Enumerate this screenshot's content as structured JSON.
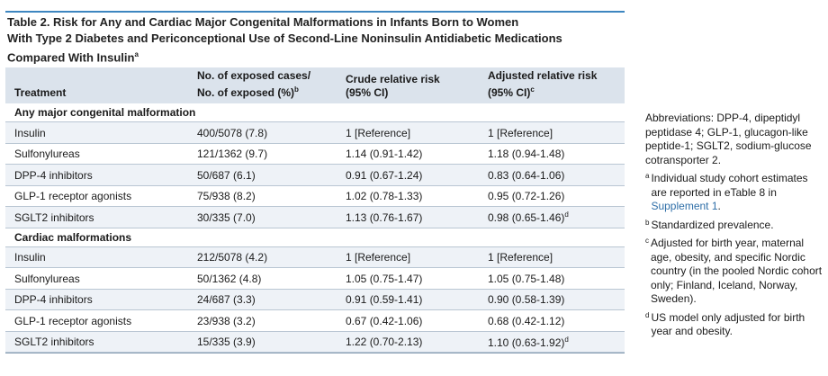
{
  "title": {
    "line1": "Table 2. Risk for Any and Cardiac Major Congenital Malformations in Infants Born to Women",
    "line2": "With Type 2 Diabetes and Periconceptional Use of Second-Line Noninsulin Antidiabetic Medications",
    "line3": "Compared With Insulin",
    "line3_sup": "a"
  },
  "columns": {
    "treatment": "Treatment",
    "exposed_line1": "No. of exposed cases/",
    "exposed_line2": "No. of exposed (%)",
    "exposed_sup": "b",
    "crude_line1": "Crude relative risk",
    "crude_line2": "(95% CI)",
    "adjusted_line1": "Adjusted relative risk",
    "adjusted_line2": "(95% CI)",
    "adjusted_sup": "c"
  },
  "sections": [
    {
      "label": "Any major congenital malformation",
      "rows": [
        {
          "treatment": "Insulin",
          "exposed": "400/5078 (7.8)",
          "crude": "1 [Reference]",
          "adjusted": "1 [Reference]",
          "sup": ""
        },
        {
          "treatment": "Sulfonylureas",
          "exposed": "121/1362 (9.7)",
          "crude": "1.14 (0.91-1.42)",
          "adjusted": "1.18 (0.94-1.48)",
          "sup": ""
        },
        {
          "treatment": "DPP-4 inhibitors",
          "exposed": "50/687 (6.1)",
          "crude": "0.91 (0.67-1.24)",
          "adjusted": "0.83 (0.64-1.06)",
          "sup": ""
        },
        {
          "treatment": "GLP-1 receptor agonists",
          "exposed": "75/938 (8.2)",
          "crude": "1.02 (0.78-1.33)",
          "adjusted": "0.95 (0.72-1.26)",
          "sup": ""
        },
        {
          "treatment": "SGLT2 inhibitors",
          "exposed": "30/335 (7.0)",
          "crude": "1.13 (0.76-1.67)",
          "adjusted": "0.98 (0.65-1.46)",
          "sup": "d"
        }
      ]
    },
    {
      "label": "Cardiac malformations",
      "rows": [
        {
          "treatment": "Insulin",
          "exposed": "212/5078 (4.2)",
          "crude": "1 [Reference]",
          "adjusted": "1 [Reference]",
          "sup": ""
        },
        {
          "treatment": "Sulfonylureas",
          "exposed": "50/1362 (4.8)",
          "crude": "1.05 (0.75-1.47)",
          "adjusted": "1.05 (0.75-1.48)",
          "sup": ""
        },
        {
          "treatment": "DPP-4 inhibitors",
          "exposed": "24/687 (3.3)",
          "crude": "0.91 (0.59-1.41)",
          "adjusted": "0.90 (0.58-1.39)",
          "sup": ""
        },
        {
          "treatment": "GLP-1 receptor agonists",
          "exposed": "23/938 (3.2)",
          "crude": "0.67 (0.42-1.06)",
          "adjusted": "0.68 (0.42-1.12)",
          "sup": ""
        },
        {
          "treatment": "SGLT2 inhibitors",
          "exposed": "15/335 (3.9)",
          "crude": "1.22 (0.70-2.13)",
          "adjusted": "1.10 (0.63-1.92)",
          "sup": "d"
        }
      ]
    }
  ],
  "notes": {
    "abbreviations": "Abbreviations: DPP-4, dipeptidyl peptidase 4; GLP-1, glucagon-like peptide-1; SGLT2, sodium-glucose cotransporter 2.",
    "footnotes": [
      {
        "mark": "a",
        "text": "Individual study cohort estimates are reported in eTable 8 in ",
        "link": "Supplement 1",
        "after": "."
      },
      {
        "mark": "b",
        "text": "Standardized prevalence.",
        "link": "",
        "after": ""
      },
      {
        "mark": "c",
        "text": "Adjusted for birth year, maternal age, obesity, and specific Nordic country (in the pooled Nordic cohort only; Finland, Iceland, Norway, Sweden).",
        "link": "",
        "after": ""
      },
      {
        "mark": "d",
        "text": "US model only adjusted for birth year and obesity.",
        "link": "",
        "after": ""
      }
    ]
  }
}
